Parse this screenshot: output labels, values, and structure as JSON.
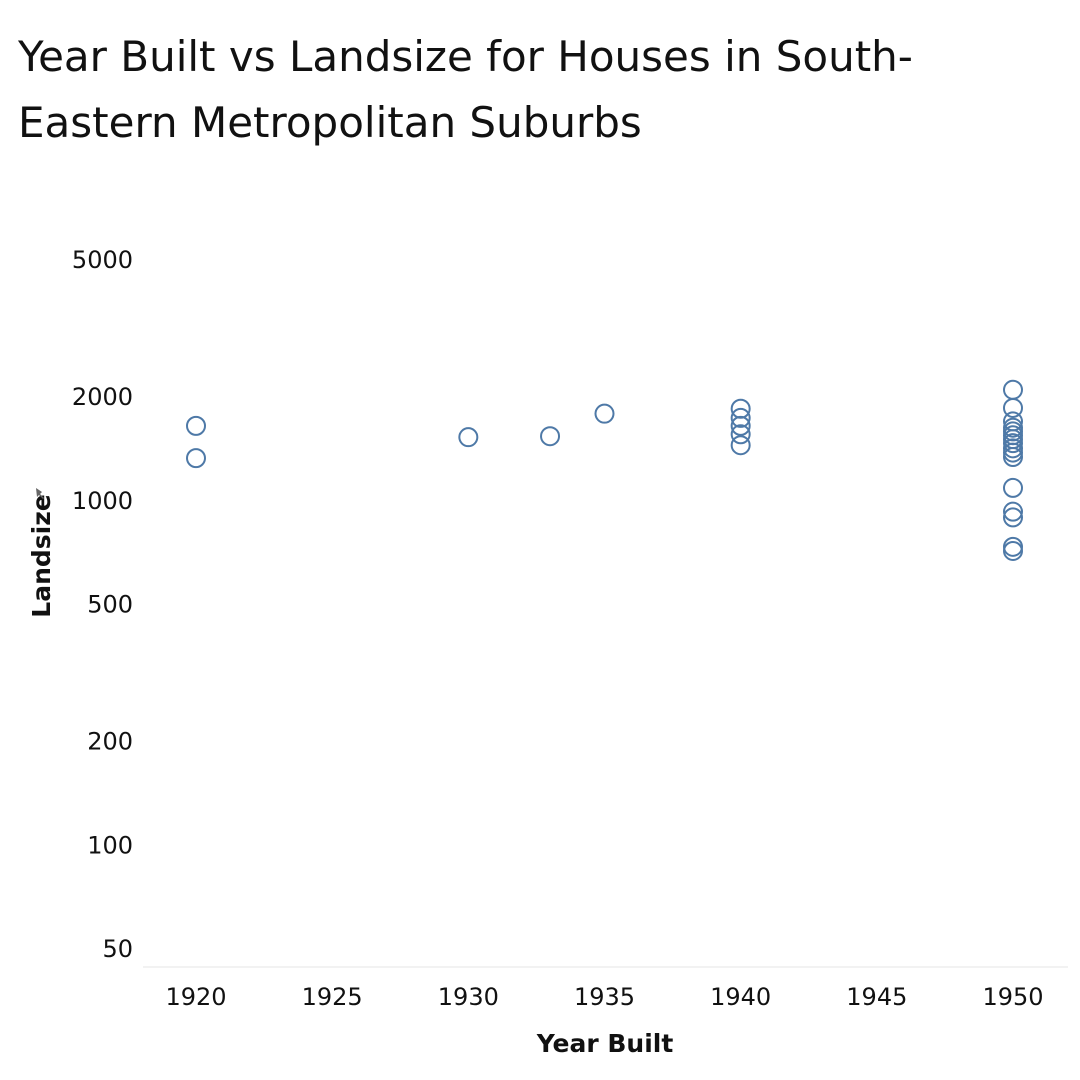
{
  "title": "Year Built vs Landsize for Houses in South-Eastern Metropolitan Suburbs",
  "chart_data": {
    "type": "scatter",
    "title": "Year Built vs Landsize for Houses in South-Eastern Metropolitan Suburbs",
    "xlabel": "Year Built",
    "ylabel": "Landsize",
    "y_scale": "log",
    "xlim": [
      1918,
      1952
    ],
    "ylim": [
      45,
      5000
    ],
    "x_ticks": [
      1920,
      1925,
      1930,
      1935,
      1940,
      1945,
      1950
    ],
    "y_ticks": [
      50,
      100,
      200,
      500,
      1000,
      2000,
      5000
    ],
    "grid": false,
    "marker": "hollow-circle",
    "color": "#4e79a7",
    "points": [
      {
        "x": 1920,
        "y": 1650
      },
      {
        "x": 1920,
        "y": 1330
      },
      {
        "x": 1930,
        "y": 1530
      },
      {
        "x": 1933,
        "y": 1540
      },
      {
        "x": 1935,
        "y": 1790
      },
      {
        "x": 1940,
        "y": 1850
      },
      {
        "x": 1940,
        "y": 1740
      },
      {
        "x": 1940,
        "y": 1650
      },
      {
        "x": 1940,
        "y": 1560
      },
      {
        "x": 1940,
        "y": 1450
      },
      {
        "x": 1950,
        "y": 2100
      },
      {
        "x": 1950,
        "y": 1860
      },
      {
        "x": 1950,
        "y": 1700
      },
      {
        "x": 1950,
        "y": 1630
      },
      {
        "x": 1950,
        "y": 1590
      },
      {
        "x": 1950,
        "y": 1550
      },
      {
        "x": 1950,
        "y": 1510
      },
      {
        "x": 1950,
        "y": 1470
      },
      {
        "x": 1950,
        "y": 1420
      },
      {
        "x": 1950,
        "y": 1380
      },
      {
        "x": 1950,
        "y": 1340
      },
      {
        "x": 1950,
        "y": 1090
      },
      {
        "x": 1950,
        "y": 930
      },
      {
        "x": 1950,
        "y": 895
      },
      {
        "x": 1950,
        "y": 735
      },
      {
        "x": 1950,
        "y": 715
      }
    ]
  }
}
